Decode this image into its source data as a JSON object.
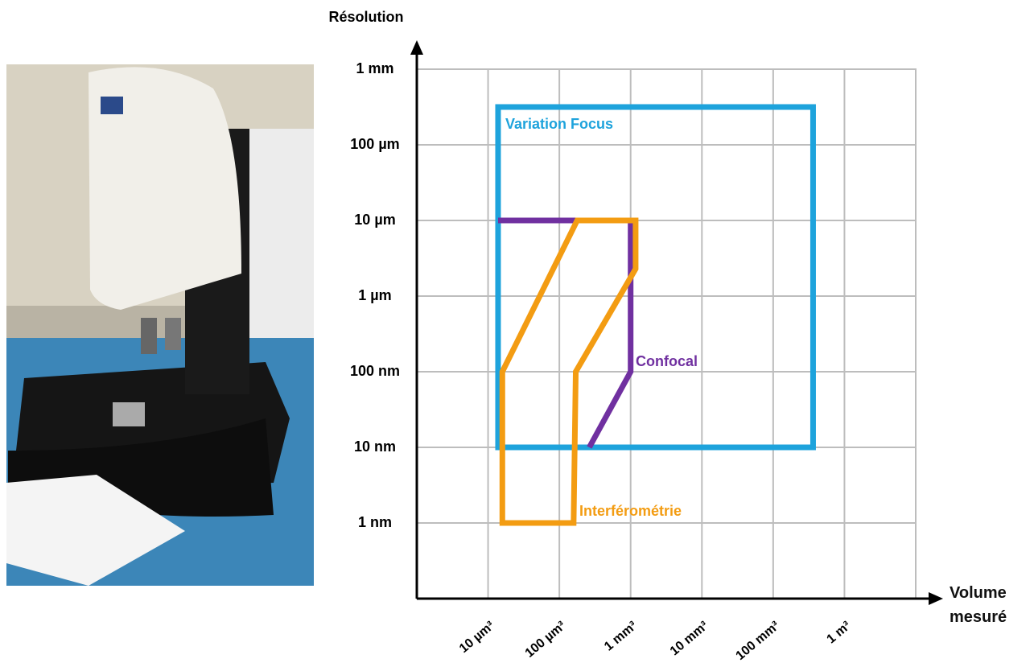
{
  "chart_data": {
    "type": "region",
    "y_label": "Résolution",
    "x_label": "Volume mesuré",
    "xlim": [
      0,
      7
    ],
    "ylim": [
      0,
      7
    ],
    "xticks": [
      {
        "value": 1,
        "label": "10 µm³"
      },
      {
        "value": 2,
        "label": "100 µm³"
      },
      {
        "value": 3,
        "label": "1 mm³"
      },
      {
        "value": 4,
        "label": "10 mm³"
      },
      {
        "value": 5,
        "label": "100 mm³"
      },
      {
        "value": 6,
        "label": "1 m³"
      }
    ],
    "yticks": [
      {
        "value": 1,
        "label": "1 nm"
      },
      {
        "value": 2,
        "label": "10 nm"
      },
      {
        "value": 3,
        "label": "100 nm"
      },
      {
        "value": 4,
        "label": "1 µm"
      },
      {
        "value": 5,
        "label": "10 µm"
      },
      {
        "value": 6,
        "label": "100 µm"
      },
      {
        "value": 7,
        "label": "1 mm"
      }
    ],
    "grid": true,
    "series": [
      {
        "name": "Variation Focus",
        "color": "#1ea3dc",
        "closed": true,
        "x": [
          1.14,
          5.56,
          5.56,
          1.14
        ],
        "y": [
          2,
          2,
          6.5,
          6.5
        ]
      },
      {
        "name": "Confocal",
        "color": "#7030a0",
        "closed": false,
        "x": [
          1.14,
          3,
          3,
          2.42
        ],
        "y": [
          5,
          5,
          3,
          2
        ]
      },
      {
        "name": "Interférométrie",
        "color": "#f39c12",
        "closed": true,
        "x": [
          1.2,
          1.2,
          2.25,
          3.07,
          3.07,
          2.23,
          2.2
        ],
        "y": [
          1,
          3,
          5,
          5,
          4.36,
          3,
          1
        ]
      }
    ]
  }
}
